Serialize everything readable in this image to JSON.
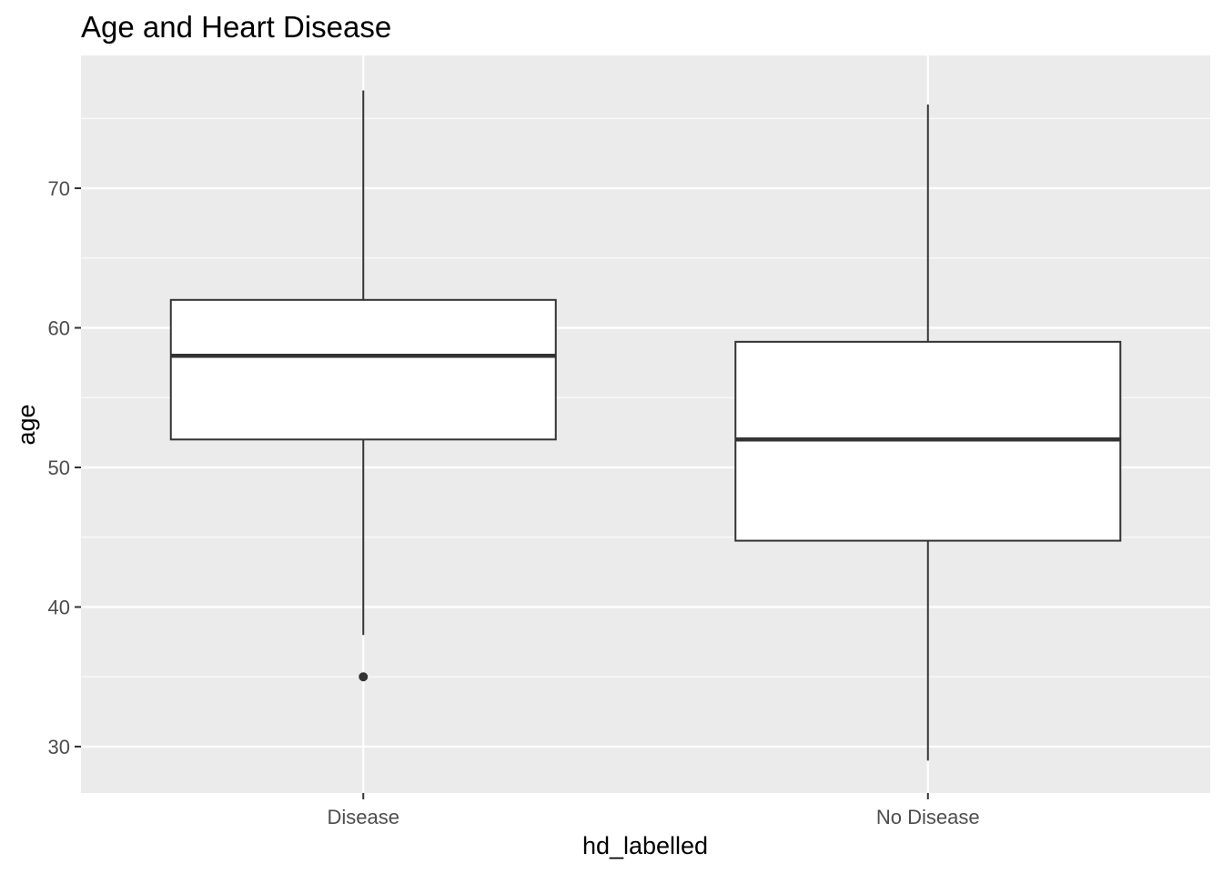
{
  "chart_data": {
    "type": "boxplot",
    "title": "Age and Heart Disease",
    "xlabel": "hd_labelled",
    "ylabel": "age",
    "categories": [
      "Disease",
      "No Disease"
    ],
    "ylim": [
      26.7,
      79.4
    ],
    "yticks": [
      30,
      40,
      50,
      60,
      70
    ],
    "grid": true,
    "legend": "none",
    "boxes": [
      {
        "category": "Disease",
        "whisker_low": 38,
        "q1": 52,
        "median": 58,
        "q3": 62,
        "whisker_high": 77,
        "outliers": [
          35
        ]
      },
      {
        "category": "No Disease",
        "whisker_low": 29,
        "q1": 44.75,
        "median": 52,
        "q3": 59,
        "whisker_high": 76,
        "outliers": []
      }
    ],
    "colors": {
      "panel_background": "#ebebeb",
      "grid_line": "#ffffff",
      "box_fill": "#ffffff",
      "box_line": "#333333",
      "tick_text": "#4d4d4d"
    }
  }
}
